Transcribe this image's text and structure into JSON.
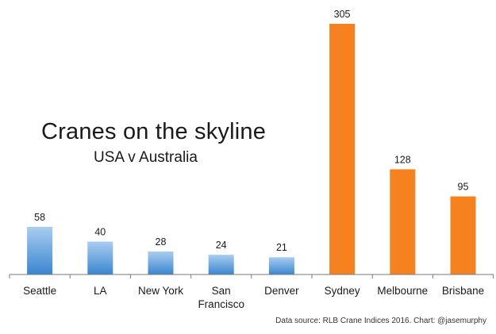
{
  "chart_data": {
    "type": "bar",
    "title": "Cranes on the skyline",
    "subtitle": "USA v Australia",
    "source": "Data source: RLB Crane Indices 2016. Chart: @jasemurphy",
    "xlabel": "",
    "ylabel": "",
    "ylim": [
      0,
      305
    ],
    "grid": false,
    "categories": [
      "Seattle",
      "LA",
      "New York",
      "San Francisco",
      "Denver",
      "Sydney",
      "Melbourne",
      "Brisbane"
    ],
    "category_lines": [
      [
        "Seattle"
      ],
      [
        "LA"
      ],
      [
        "New York"
      ],
      [
        "San",
        "Francisco"
      ],
      [
        "Denver"
      ],
      [
        "Sydney"
      ],
      [
        "Melbourne"
      ],
      [
        "Brisbane"
      ]
    ],
    "values": [
      58,
      40,
      28,
      24,
      21,
      305,
      128,
      95
    ],
    "groups": [
      "USA",
      "USA",
      "USA",
      "USA",
      "USA",
      "Australia",
      "Australia",
      "Australia"
    ],
    "colors": {
      "USA_top": "#a9cdf0",
      "USA_bottom": "#3a86d0",
      "Australia": "#f5821f",
      "axis": "#7a7a7a"
    }
  }
}
